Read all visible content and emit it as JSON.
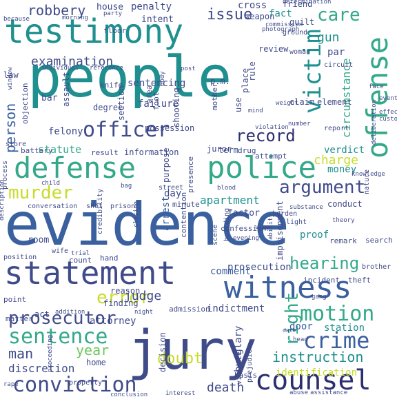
{
  "image_kind": "word-cloud",
  "background_color": "#ffffff",
  "palette": {
    "yellow_green": "#c8dc2a",
    "light_green": "#6dc55f",
    "green": "#34a98a",
    "teal": "#1f8f8f",
    "blue": "#3a60a0",
    "slate": "#404b8a",
    "indigo": "#2c2f6f",
    "purple": "#42196c"
  },
  "words": [
    {
      "text": "evidence",
      "color": "#3a60a0"
    },
    {
      "text": "people",
      "color": "#1f8f8f"
    },
    {
      "text": "jury",
      "color": "#404b8a"
    },
    {
      "text": "testimony",
      "color": "#1f8f8f"
    },
    {
      "text": "statement",
      "color": "#404b8a"
    },
    {
      "text": "police",
      "color": "#34a98a"
    },
    {
      "text": "defense",
      "color": "#34a98a"
    },
    {
      "text": "offense",
      "color": "#34a98a"
    },
    {
      "text": "witness",
      "color": "#3a60a0"
    },
    {
      "text": "counsel",
      "color": "#2c2f6f"
    },
    {
      "text": "conviction",
      "color": "#404b8a"
    },
    {
      "text": "officer",
      "color": "#404b8a"
    },
    {
      "text": "victim",
      "color": "#1f8f8f"
    },
    {
      "text": "crime",
      "color": "#3a60a0"
    },
    {
      "text": "sentence",
      "color": "#34a98a"
    },
    {
      "text": "error",
      "color": "#c8dc2a"
    },
    {
      "text": "motion",
      "color": "#34a98a"
    },
    {
      "text": "murder",
      "color": "#c8dc2a"
    },
    {
      "text": "argument",
      "color": "#404b8a"
    },
    {
      "text": "prosecutor",
      "color": "#404b8a"
    },
    {
      "text": "record",
      "color": "#2c2f6f"
    },
    {
      "text": "hearing",
      "color": "#34a98a"
    },
    {
      "text": "right",
      "color": "#34a98a"
    },
    {
      "text": "care",
      "color": "#34a98a"
    },
    {
      "text": "issue",
      "color": "#404b8a"
    },
    {
      "text": "robbery",
      "color": "#404b8a"
    },
    {
      "text": "examination",
      "color": "#404b8a"
    },
    {
      "text": "judge",
      "color": "#404b8a"
    },
    {
      "text": "man",
      "color": "#404b8a"
    },
    {
      "text": "year",
      "color": "#6dc55f"
    },
    {
      "text": "doubt",
      "color": "#c8dc2a"
    },
    {
      "text": "instruction",
      "color": "#1f8f8f"
    },
    {
      "text": "person",
      "color": "#3a60a0"
    },
    {
      "text": "gun",
      "color": "#1f8f8f"
    },
    {
      "text": "circumstance",
      "color": "#34a98a"
    },
    {
      "text": "charge",
      "color": "#c8dc2a"
    },
    {
      "text": "verdict",
      "color": "#1f8f8f"
    },
    {
      "text": "apartment",
      "color": "#1f8f8f"
    },
    {
      "text": "sentencing",
      "color": "#404b8a"
    },
    {
      "text": "prosecution",
      "color": "#404b8a"
    },
    {
      "text": "indictment",
      "color": "#404b8a"
    },
    {
      "text": "death",
      "color": "#404b8a"
    },
    {
      "text": "discretion",
      "color": "#404b8a"
    },
    {
      "text": "attorney",
      "color": "#404b8a"
    },
    {
      "text": "felony",
      "color": "#404b8a"
    },
    {
      "text": "failure",
      "color": "#404b8a"
    },
    {
      "text": "statute",
      "color": "#34a98a"
    },
    {
      "text": "arrest",
      "color": "#3a60a0"
    },
    {
      "text": "burglary",
      "color": "#404b8a"
    },
    {
      "text": "station",
      "color": "#1f8f8f"
    },
    {
      "text": "identification",
      "color": "#c8dc2a"
    },
    {
      "text": "proof",
      "color": "#1f8f8f"
    },
    {
      "text": "comment",
      "color": "#3a60a0"
    },
    {
      "text": "money",
      "color": "#1f8f8f"
    },
    {
      "text": "juror",
      "color": "#404b8a"
    },
    {
      "text": "factor",
      "color": "#404b8a"
    },
    {
      "text": "day",
      "color": "#404b8a"
    },
    {
      "text": "room",
      "color": "#404b8a"
    },
    {
      "text": "door",
      "color": "#3a60a0"
    },
    {
      "text": "act",
      "color": "#404b8a"
    },
    {
      "text": "home",
      "color": "#404b8a"
    },
    {
      "text": "penalty",
      "color": "#404b8a"
    },
    {
      "text": "house",
      "color": "#404b8a"
    },
    {
      "text": "intent",
      "color": "#404b8a"
    },
    {
      "text": "cross",
      "color": "#404b8a"
    },
    {
      "text": "weapon",
      "color": "#404b8a"
    },
    {
      "text": "fact",
      "color": "#1f8f8f"
    },
    {
      "text": "guilt",
      "color": "#404b8a"
    },
    {
      "text": "review",
      "color": "#404b8a"
    },
    {
      "text": "par",
      "color": "#404b8a"
    },
    {
      "text": "rule",
      "color": "#404b8a"
    },
    {
      "text": "claim",
      "color": "#404b8a"
    },
    {
      "text": "element",
      "color": "#404b8a"
    },
    {
      "text": "term",
      "color": "#404b8a"
    },
    {
      "text": "drug",
      "color": "#404b8a"
    },
    {
      "text": "attempt",
      "color": "#404b8a"
    },
    {
      "text": "report",
      "color": "#404b8a"
    },
    {
      "text": "conduct",
      "color": "#404b8a"
    },
    {
      "text": "remark",
      "color": "#404b8a"
    },
    {
      "text": "search",
      "color": "#404b8a"
    },
    {
      "text": "incident",
      "color": "#404b8a"
    },
    {
      "text": "theft",
      "color": "#404b8a"
    },
    {
      "text": "brother",
      "color": "#404b8a"
    },
    {
      "text": "finding",
      "color": "#404b8a"
    },
    {
      "text": "reason",
      "color": "#404b8a"
    },
    {
      "text": "count",
      "color": "#404b8a"
    },
    {
      "text": "hand",
      "color": "#404b8a"
    },
    {
      "text": "point",
      "color": "#404b8a"
    },
    {
      "text": "matter",
      "color": "#404b8a"
    },
    {
      "text": "minute",
      "color": "#404b8a"
    },
    {
      "text": "contention",
      "color": "#404b8a"
    },
    {
      "text": "confession",
      "color": "#404b8a"
    },
    {
      "text": "imprisonment",
      "color": "#404b8a"
    },
    {
      "text": "building",
      "color": "#404b8a"
    },
    {
      "text": "scene",
      "color": "#404b8a"
    },
    {
      "text": "prejudice",
      "color": "#404b8a"
    },
    {
      "text": "violence",
      "color": "#404b8a"
    },
    {
      "text": "basis",
      "color": "#404b8a"
    },
    {
      "text": "admission",
      "color": "#404b8a"
    },
    {
      "text": "decision",
      "color": "#404b8a"
    },
    {
      "text": "property",
      "color": "#404b8a"
    },
    {
      "text": "purpose",
      "color": "#404b8a"
    },
    {
      "text": "presence",
      "color": "#404b8a"
    },
    {
      "text": "information",
      "color": "#404b8a"
    },
    {
      "text": "result",
      "color": "#404b8a"
    },
    {
      "text": "battery",
      "color": "#404b8a"
    },
    {
      "text": "store",
      "color": "#404b8a"
    },
    {
      "text": "process",
      "color": "#404b8a"
    },
    {
      "text": "objection",
      "color": "#404b8a"
    },
    {
      "text": "assault",
      "color": "#404b8a"
    },
    {
      "text": "degree",
      "color": "#404b8a"
    },
    {
      "text": "section",
      "color": "#404b8a"
    },
    {
      "text": "area",
      "color": "#404b8a"
    },
    {
      "text": "foot",
      "color": "#404b8a"
    },
    {
      "text": "shooting",
      "color": "#404b8a"
    },
    {
      "text": "possession",
      "color": "#404b8a"
    },
    {
      "text": "mother",
      "color": "#404b8a"
    },
    {
      "text": "use",
      "color": "#404b8a"
    },
    {
      "text": "place",
      "color": "#404b8a"
    },
    {
      "text": "p.m.",
      "color": "#404b8a"
    },
    {
      "text": "law",
      "color": "#404b8a"
    },
    {
      "text": "bar",
      "color": "#404b8a"
    },
    {
      "text": "knife",
      "color": "#404b8a"
    },
    {
      "text": "floor",
      "color": "#404b8a"
    },
    {
      "text": "woman",
      "color": "#404b8a"
    },
    {
      "text": "circuit",
      "color": "#404b8a"
    },
    {
      "text": "friend",
      "color": "#404b8a"
    },
    {
      "text": "conversation",
      "color": "#404b8a"
    },
    {
      "text": "shot",
      "color": "#404b8a"
    },
    {
      "text": "prison",
      "color": "#404b8a"
    },
    {
      "text": "street",
      "color": "#404b8a"
    },
    {
      "text": "credibility",
      "color": "#404b8a"
    },
    {
      "text": "burden",
      "color": "#404b8a"
    },
    {
      "text": "light",
      "color": "#404b8a"
    },
    {
      "text": "nature",
      "color": "#404b8a"
    },
    {
      "text": "knowledge",
      "color": "#404b8a"
    },
    {
      "text": "custody",
      "color": "#404b8a"
    },
    {
      "text": "effect",
      "color": "#404b8a"
    },
    {
      "text": "event",
      "color": "#404b8a"
    },
    {
      "text": "face",
      "color": "#404b8a"
    },
    {
      "text": "position",
      "color": "#404b8a"
    },
    {
      "text": "wife",
      "color": "#404b8a"
    },
    {
      "text": "trial",
      "color": "#404b8a"
    },
    {
      "text": "night",
      "color": "#404b8a"
    },
    {
      "text": "rape",
      "color": "#404b8a"
    },
    {
      "text": "ground",
      "color": "#404b8a"
    },
    {
      "text": "photograph",
      "color": "#404b8a"
    },
    {
      "text": "weight",
      "color": "#404b8a"
    },
    {
      "text": "body",
      "color": "#404b8a"
    },
    {
      "text": "post",
      "color": "#404b8a"
    },
    {
      "text": "individual",
      "color": "#404b8a"
    },
    {
      "text": "reference",
      "color": "#404b8a"
    },
    {
      "text": "because",
      "color": "#404b8a"
    },
    {
      "text": "morning",
      "color": "#404b8a"
    },
    {
      "text": "party",
      "color": "#404b8a"
    },
    {
      "text": "commission",
      "color": "#404b8a"
    },
    {
      "text": "determination",
      "color": "#404b8a"
    },
    {
      "text": "number",
      "color": "#404b8a"
    },
    {
      "text": "gang",
      "color": "#404b8a"
    },
    {
      "text": "addition",
      "color": "#404b8a"
    },
    {
      "text": "blood",
      "color": "#404b8a"
    },
    {
      "text": "substance",
      "color": "#404b8a"
    },
    {
      "text": "theory",
      "color": "#404b8a"
    },
    {
      "text": "evening",
      "color": "#404b8a"
    },
    {
      "text": "head",
      "color": "#404b8a"
    },
    {
      "text": "date",
      "color": "#404b8a"
    },
    {
      "text": "abuse",
      "color": "#404b8a"
    },
    {
      "text": "assistance",
      "color": "#404b8a"
    },
    {
      "text": "interest",
      "color": "#404b8a"
    },
    {
      "text": "conclusion",
      "color": "#404b8a"
    },
    {
      "text": "child",
      "color": "#404b8a"
    },
    {
      "text": "bag",
      "color": "#404b8a"
    },
    {
      "text": "closing",
      "color": "#404b8a"
    },
    {
      "text": "view",
      "color": "#404b8a"
    },
    {
      "text": "window",
      "color": "#404b8a"
    },
    {
      "text": "ability",
      "color": "#404b8a"
    },
    {
      "text": "mind",
      "color": "#404b8a"
    },
    {
      "text": "violation",
      "color": "#404b8a"
    },
    {
      "text": "description",
      "color": "#404b8a"
    },
    {
      "text": "deliberation",
      "color": "#404b8a"
    },
    {
      "text": "proceeding",
      "color": "#404b8a"
    }
  ]
}
